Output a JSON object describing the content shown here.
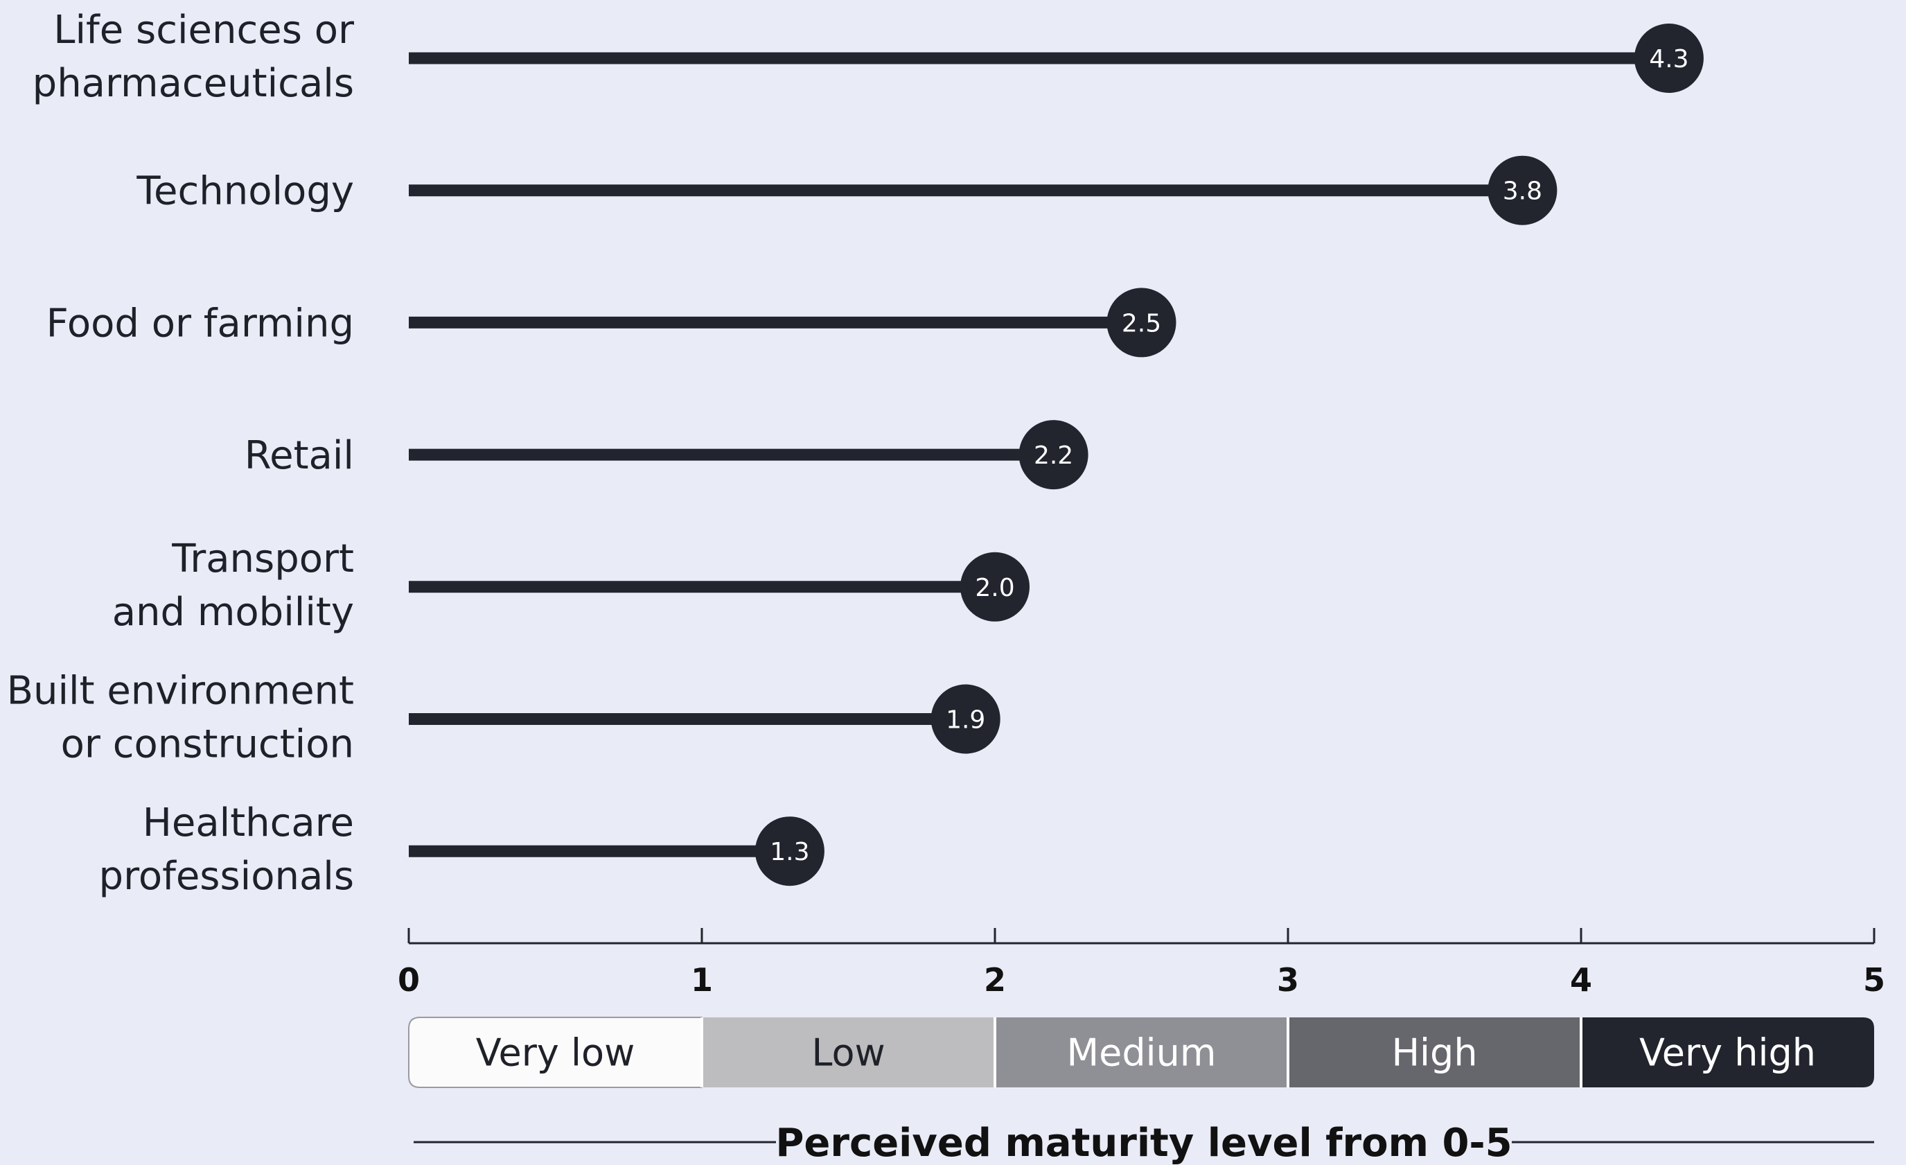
{
  "chart_data": {
    "type": "bar",
    "title": "",
    "xlabel": "Perceived maturity level from 0-5",
    "ylabel": "",
    "xlim": [
      0,
      5
    ],
    "x_ticks": [
      "0",
      "1",
      "2",
      "3",
      "4",
      "5"
    ],
    "categories": [
      [
        "Life sciences or",
        "pharmaceuticals"
      ],
      [
        "Technology"
      ],
      [
        "Food or farming"
      ],
      [
        "Retail"
      ],
      [
        "Transport",
        "and mobility"
      ],
      [
        "Built environment",
        "or construction"
      ],
      [
        "Healthcare",
        "professionals"
      ]
    ],
    "values": [
      4.3,
      3.8,
      2.5,
      2.2,
      2.0,
      1.9,
      1.3
    ],
    "value_labels": [
      "4.3",
      "3.8",
      "2.5",
      "2.2",
      "2.0",
      "1.9",
      "1.3"
    ],
    "scale_bands": [
      {
        "label": "Very low",
        "from": 0,
        "to": 1,
        "fill": "#fbfbfb",
        "text_color": "#1f2129"
      },
      {
        "label": "Low",
        "from": 1,
        "to": 2,
        "fill": "#bdbdc0",
        "text_color": "#1f2129"
      },
      {
        "label": "Medium",
        "from": 2,
        "to": 3,
        "fill": "#8f9095",
        "text_color": "#ffffff"
      },
      {
        "label": "High",
        "from": 3,
        "to": 4,
        "fill": "#66676c",
        "text_color": "#ffffff"
      },
      {
        "label": "Very high",
        "from": 4,
        "to": 5,
        "fill": "#22252e",
        "text_color": "#ffffff"
      }
    ],
    "colors": {
      "background": "#e9ebf6",
      "bar": "#22252e",
      "marker": "#22252e",
      "axis": "#22252e"
    },
    "grid": false,
    "legend": "none"
  }
}
